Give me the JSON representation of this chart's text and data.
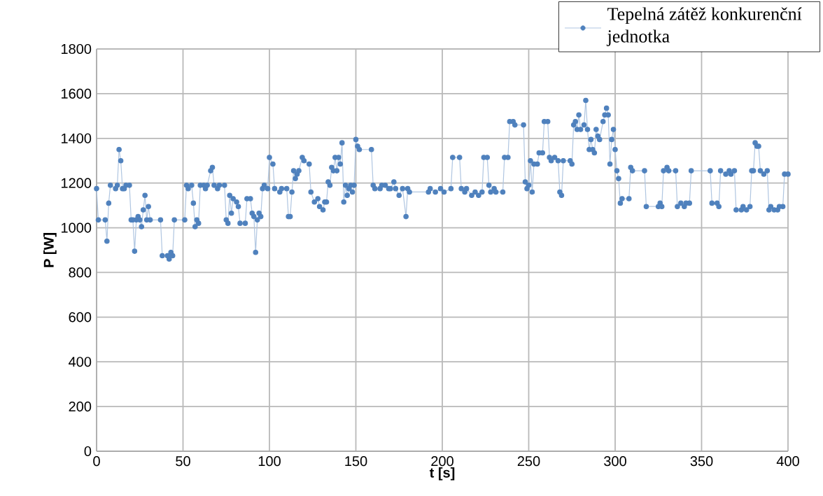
{
  "chart_data": {
    "type": "line",
    "xlabel": "t [s]",
    "ylabel": "P [W]",
    "x": [
      0,
      1,
      5,
      6,
      7,
      8,
      11,
      12,
      13,
      14,
      15,
      16,
      17,
      19,
      20,
      21,
      22,
      23,
      24,
      25,
      26,
      27,
      28,
      29,
      30,
      31,
      37,
      38,
      41,
      42,
      43,
      44,
      45,
      51,
      52,
      53,
      55,
      56,
      57,
      58,
      59,
      60,
      62,
      63,
      64,
      66,
      67,
      68,
      70,
      71,
      74,
      75,
      76,
      77,
      78,
      79,
      81,
      82,
      83,
      86,
      87,
      89,
      90,
      91,
      92,
      93,
      94,
      95,
      96,
      97,
      99,
      100,
      102,
      103,
      106,
      107,
      110,
      111,
      112,
      113,
      114,
      115,
      116,
      117,
      119,
      120,
      123,
      124,
      126,
      128,
      129,
      131,
      132,
      133,
      134,
      135,
      136,
      137,
      138,
      139,
      140,
      141,
      142,
      143,
      144,
      145,
      146,
      147,
      148,
      149,
      150,
      151,
      152,
      159,
      160,
      161,
      164,
      165,
      167,
      169,
      170,
      172,
      173,
      175,
      177,
      179,
      180,
      181,
      192,
      193,
      196,
      199,
      201,
      205,
      206,
      210,
      211,
      213,
      214,
      217,
      219,
      221,
      223,
      224,
      226,
      227,
      228,
      230,
      231,
      235,
      236,
      238,
      239,
      241,
      242,
      247,
      248,
      249,
      250,
      251,
      252,
      253,
      255,
      256,
      258,
      259,
      261,
      262,
      263,
      265,
      267,
      268,
      269,
      270,
      274,
      275,
      276,
      277,
      278,
      279,
      280,
      282,
      283,
      284,
      285,
      286,
      287,
      288,
      289,
      290,
      291,
      293,
      294,
      295,
      296,
      297,
      298,
      299,
      300,
      301,
      302,
      303,
      304,
      308,
      309,
      310,
      317,
      318,
      325,
      326,
      327,
      328,
      330,
      331,
      335,
      336,
      338,
      340,
      341,
      343,
      344,
      355,
      356,
      359,
      360,
      361,
      364,
      366,
      367,
      369,
      370,
      373,
      374,
      376,
      378,
      379,
      380,
      381,
      382,
      383,
      384,
      386,
      388,
      389,
      390,
      392,
      394,
      395,
      397,
      398,
      400
    ],
    "series": [
      {
        "name": "Tepelná zátěž konkurenční jednotka",
        "color": "#4f81bd",
        "values": [
          1175,
          1035,
          1035,
          940,
          1110,
          1190,
          1175,
          1190,
          1350,
          1300,
          1175,
          1175,
          1190,
          1190,
          1035,
          1035,
          895,
          1035,
          1050,
          1035,
          1005,
          1080,
          1145,
          1035,
          1095,
          1035,
          1035,
          875,
          875,
          860,
          890,
          875,
          1035,
          1035,
          1190,
          1175,
          1190,
          1110,
          1005,
          1035,
          1020,
          1190,
          1190,
          1175,
          1190,
          1255,
          1270,
          1190,
          1175,
          1190,
          1190,
          1035,
          1020,
          1145,
          1065,
          1130,
          1115,
          1095,
          1020,
          1020,
          1130,
          1130,
          1065,
          1050,
          890,
          1035,
          1065,
          1050,
          1175,
          1190,
          1175,
          1315,
          1285,
          1175,
          1160,
          1175,
          1175,
          1050,
          1050,
          1160,
          1255,
          1220,
          1240,
          1255,
          1315,
          1300,
          1285,
          1160,
          1115,
          1130,
          1095,
          1080,
          1115,
          1115,
          1205,
          1190,
          1270,
          1255,
          1315,
          1255,
          1315,
          1285,
          1380,
          1115,
          1190,
          1145,
          1175,
          1190,
          1160,
          1190,
          1395,
          1365,
          1350,
          1350,
          1190,
          1175,
          1175,
          1190,
          1190,
          1175,
          1175,
          1205,
          1175,
          1145,
          1175,
          1050,
          1175,
          1160,
          1160,
          1175,
          1160,
          1175,
          1160,
          1175,
          1315,
          1315,
          1175,
          1160,
          1175,
          1145,
          1160,
          1145,
          1160,
          1315,
          1315,
          1190,
          1160,
          1175,
          1160,
          1160,
          1315,
          1315,
          1475,
          1475,
          1460,
          1460,
          1205,
          1175,
          1190,
          1300,
          1160,
          1285,
          1285,
          1335,
          1335,
          1475,
          1475,
          1315,
          1300,
          1315,
          1300,
          1160,
          1145,
          1300,
          1300,
          1285,
          1460,
          1475,
          1440,
          1505,
          1440,
          1460,
          1570,
          1440,
          1350,
          1395,
          1350,
          1335,
          1440,
          1410,
          1395,
          1475,
          1505,
          1535,
          1505,
          1285,
          1395,
          1440,
          1350,
          1255,
          1220,
          1110,
          1130,
          1130,
          1270,
          1255,
          1255,
          1095,
          1095,
          1110,
          1095,
          1255,
          1270,
          1255,
          1255,
          1095,
          1110,
          1095,
          1110,
          1110,
          1255,
          1255,
          1110,
          1110,
          1095,
          1255,
          1240,
          1255,
          1240,
          1255,
          1080,
          1080,
          1095,
          1080,
          1095,
          1255,
          1255,
          1380,
          1365,
          1365,
          1255,
          1240,
          1255,
          1080,
          1095,
          1080,
          1080,
          1095,
          1095,
          1240,
          1240
        ]
      }
    ],
    "xlim": [
      0,
      400
    ],
    "ylim": [
      0,
      1800
    ],
    "xticks": [
      0,
      50,
      100,
      150,
      200,
      250,
      300,
      350,
      400
    ],
    "yticks": [
      0,
      200,
      400,
      600,
      800,
      1000,
      1200,
      1400,
      1600,
      1800
    ],
    "grid": true,
    "legend": "top right",
    "marker": "circle"
  }
}
